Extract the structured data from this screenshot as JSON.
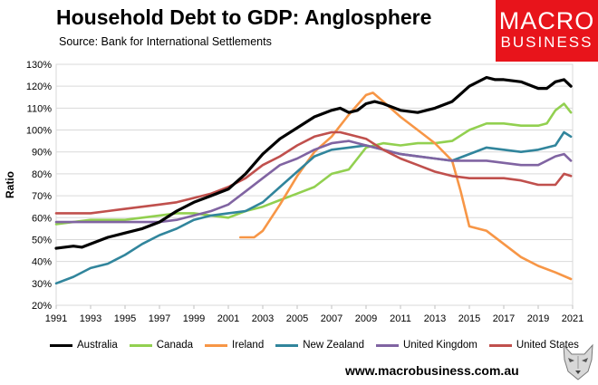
{
  "header": {
    "title": "Household Debt to GDP: Anglosphere",
    "source": "Source: Bank for International Settlements"
  },
  "logo": {
    "line1": "MACRO",
    "line2": "BUSINESS"
  },
  "footer": {
    "website": "www.macrobusiness.com.au"
  },
  "chart_data": {
    "type": "line",
    "title": "Household Debt to GDP: Anglosphere",
    "xlabel": "",
    "ylabel": "Ratio",
    "xlim": [
      1991,
      2021
    ],
    "ylim": [
      20,
      130
    ],
    "x_ticks": [
      "1991",
      "1993",
      "1995",
      "1997",
      "1999",
      "2001",
      "2003",
      "2005",
      "2007",
      "2009",
      "2011",
      "2013",
      "2015",
      "2017",
      "2019",
      "2021"
    ],
    "y_ticks": [
      "20%",
      "30%",
      "40%",
      "50%",
      "60%",
      "70%",
      "80%",
      "90%",
      "100%",
      "110%",
      "120%",
      "130%"
    ],
    "grid": true,
    "legend_position": "bottom",
    "series": [
      {
        "name": "Australia",
        "color": "#000000",
        "x": [
          1991,
          1992,
          1992.5,
          1993,
          1994,
          1995,
          1996,
          1997,
          1998,
          1999,
          2000,
          2001,
          2002,
          2003,
          2004,
          2005,
          2006,
          2007,
          2007.5,
          2008,
          2008.5,
          2009,
          2009.5,
          2010,
          2011,
          2012,
          2013,
          2014,
          2015,
          2016,
          2016.5,
          2017,
          2018,
          2019,
          2019.5,
          2020,
          2020.5,
          2020.9
        ],
        "y": [
          46,
          47,
          46.5,
          48,
          51,
          53,
          55,
          58,
          63,
          67,
          70,
          73,
          80,
          89,
          96,
          101,
          106,
          109,
          110,
          108,
          109,
          112,
          113,
          112,
          109,
          108,
          110,
          113,
          120,
          124,
          123,
          123,
          122,
          119,
          119,
          122,
          123,
          120
        ]
      },
      {
        "name": "Canada",
        "color": "#92d050",
        "x": [
          1991,
          1992,
          1993,
          1994,
          1995,
          1996,
          1997,
          1998,
          1999,
          2000,
          2001,
          2002,
          2003,
          2004,
          2005,
          2006,
          2007,
          2008,
          2008.5,
          2009,
          2009.5,
          2010,
          2011,
          2012,
          2013,
          2014,
          2015,
          2016,
          2017,
          2018,
          2019,
          2019.5,
          2020,
          2020.5,
          2020.9
        ],
        "y": [
          57,
          58,
          59,
          59,
          59,
          60,
          61,
          62,
          62,
          61,
          60,
          63,
          65,
          68,
          71,
          74,
          80,
          82,
          87,
          92,
          93,
          94,
          93,
          94,
          94,
          95,
          100,
          103,
          103,
          102,
          102,
          103,
          109,
          112,
          108
        ]
      },
      {
        "name": "Ireland",
        "color": "#f79646",
        "x": [
          2001.7,
          2002.5,
          2003,
          2004,
          2005,
          2006,
          2007,
          2008,
          2009,
          2009.4,
          2010,
          2011,
          2012,
          2013,
          2014,
          2014.5,
          2015,
          2016,
          2017,
          2018,
          2019,
          2020,
          2020.9
        ],
        "y": [
          51,
          51,
          54,
          66,
          79,
          90,
          97,
          107,
          116,
          117,
          113,
          106,
          100,
          94,
          86,
          72,
          56,
          54,
          48,
          42,
          38,
          35,
          32
        ]
      },
      {
        "name": "New Zealand",
        "color": "#31859c",
        "x": [
          1991,
          1992,
          1993,
          1994,
          1995,
          1996,
          1997,
          1998,
          1999,
          2000,
          2001,
          2002,
          2003,
          2004,
          2005,
          2006,
          2007,
          2008,
          2009,
          2010,
          2011,
          2012,
          2013,
          2014,
          2015,
          2016,
          2017,
          2018,
          2019,
          2020,
          2020.5,
          2020.9
        ],
        "y": [
          30,
          33,
          37,
          39,
          43,
          48,
          52,
          55,
          59,
          61,
          62,
          63,
          67,
          74,
          81,
          88,
          91,
          92,
          93,
          91,
          89,
          88,
          87,
          86,
          89,
          92,
          91,
          90,
          91,
          93,
          99,
          97
        ]
      },
      {
        "name": "United Kingdom",
        "color": "#8064a2",
        "x": [
          1991,
          1992,
          1993,
          1994,
          1995,
          1996,
          1997,
          1998,
          1999,
          2000,
          2001,
          2002,
          2003,
          2004,
          2005,
          2006,
          2007,
          2008,
          2009,
          2010,
          2011,
          2012,
          2013,
          2014,
          2015,
          2016,
          2017,
          2018,
          2019,
          2020,
          2020.5,
          2020.9
        ],
        "y": [
          58,
          58,
          58,
          58,
          58,
          58,
          58,
          59,
          61,
          63,
          66,
          72,
          78,
          84,
          87,
          91,
          94,
          95,
          93,
          91,
          89,
          88,
          87,
          86,
          86,
          86,
          85,
          84,
          84,
          88,
          89,
          86
        ]
      },
      {
        "name": "United States",
        "color": "#c0504d",
        "x": [
          1991,
          1992,
          1993,
          1994,
          1995,
          1996,
          1997,
          1998,
          1999,
          2000,
          2001,
          2002,
          2003,
          2004,
          2005,
          2006,
          2007,
          2007.5,
          2008,
          2009,
          2010,
          2011,
          2012,
          2013,
          2014,
          2015,
          2016,
          2017,
          2018,
          2019,
          2020,
          2020.5,
          2020.9
        ],
        "y": [
          62,
          62,
          62,
          63,
          64,
          65,
          66,
          67,
          69,
          71,
          74,
          78,
          84,
          88,
          93,
          97,
          99,
          99,
          98,
          96,
          91,
          87,
          84,
          81,
          79,
          78,
          78,
          78,
          77,
          75,
          75,
          80,
          79
        ]
      }
    ]
  }
}
